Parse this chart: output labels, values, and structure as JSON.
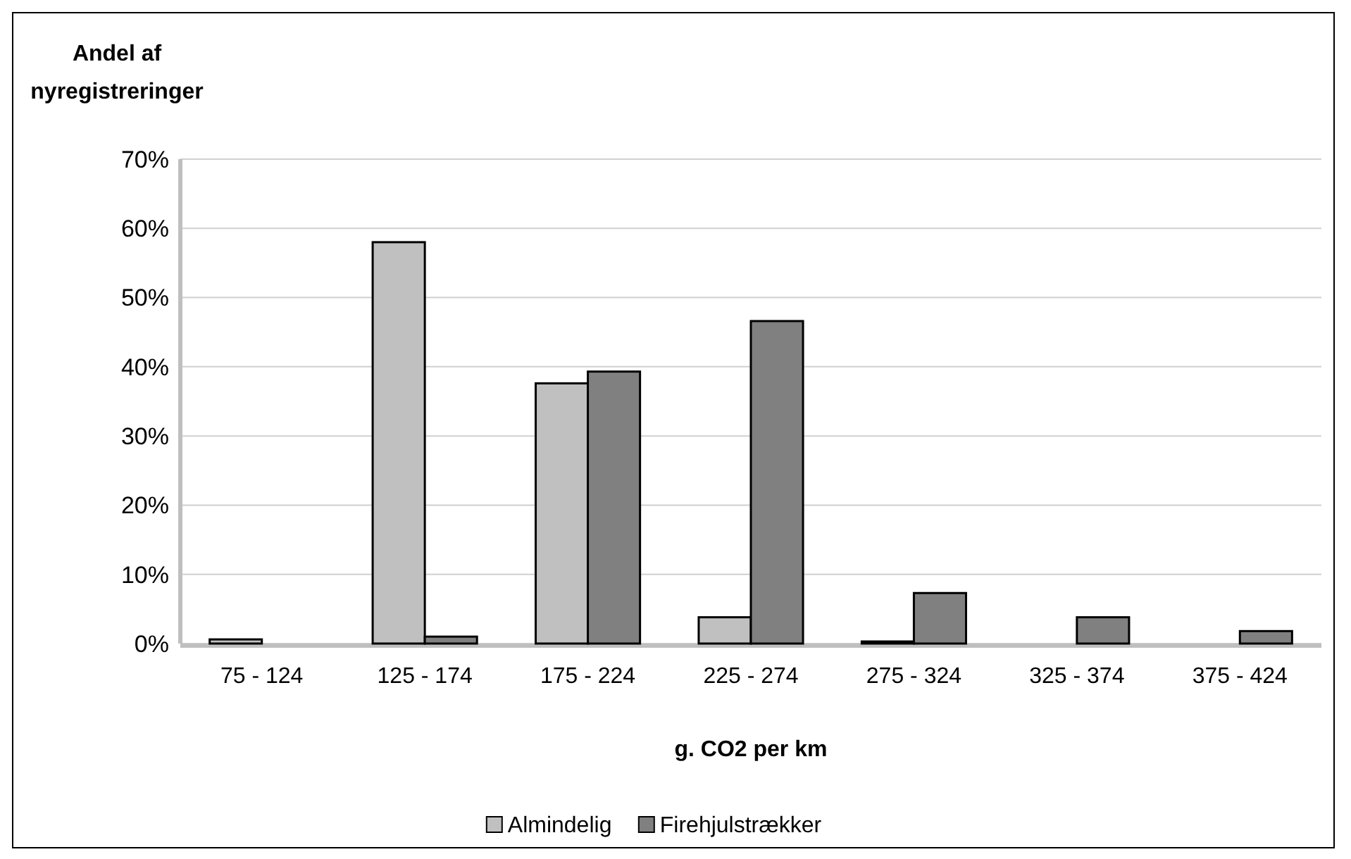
{
  "chart_data": {
    "type": "bar",
    "ylabel": "Andel af nyregistreringer",
    "xlabel": "g. CO2 per km",
    "categories": [
      "75 - 124",
      "125 - 174",
      "175 - 224",
      "225 - 274",
      "275 - 324",
      "325 - 374",
      "375 - 424"
    ],
    "series": [
      {
        "name": "Almindelig",
        "color": "#c0c0c0",
        "values": [
          0.6,
          58,
          37.6,
          3.8,
          0.3,
          0,
          0
        ]
      },
      {
        "name": "Firehjulstrækker",
        "color": "#808080",
        "values": [
          0,
          1,
          39.3,
          46.6,
          7.3,
          3.8,
          1.8
        ]
      }
    ],
    "ylim": [
      0,
      70
    ],
    "yticks": [
      {
        "value": 0,
        "label": "0%"
      },
      {
        "value": 10,
        "label": "10%"
      },
      {
        "value": 20,
        "label": "20%"
      },
      {
        "value": 30,
        "label": "30%"
      },
      {
        "value": 40,
        "label": "40%"
      },
      {
        "value": 50,
        "label": "50%"
      },
      {
        "value": 60,
        "label": "60%"
      },
      {
        "value": 70,
        "label": "70%"
      }
    ],
    "grid": "y",
    "legend": "bottom"
  }
}
